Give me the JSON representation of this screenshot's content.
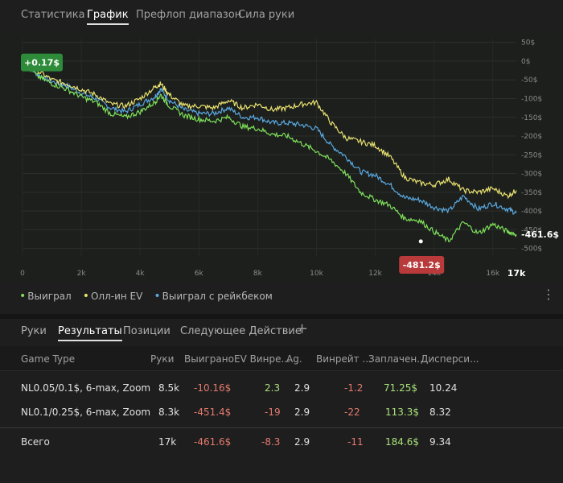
{
  "top_tabs": [
    "Статистика",
    "График",
    "Префлоп диапазон",
    "Сила руки"
  ],
  "active_top_tab": 1,
  "chart_data": {
    "type": "line",
    "x_ticks": [
      "0",
      "2k",
      "4k",
      "6k",
      "8k",
      "10k",
      "12k",
      "14k",
      "16k"
    ],
    "x_end_label": "17k",
    "y_ticks": [
      "50$",
      "0$",
      "-50$",
      "-100$",
      "-150$",
      "-200$",
      "-250$",
      "-300$",
      "-350$",
      "-400$",
      "-450$",
      "-500$"
    ],
    "xlim": [
      0,
      16800
    ],
    "ylim": [
      -520,
      60
    ],
    "series": [
      {
        "name": "Выиграл",
        "color": "#7ee05a",
        "x": [
          0,
          500,
          1000,
          1500,
          2000,
          2500,
          3000,
          3500,
          4000,
          4500,
          4700,
          5000,
          5500,
          6000,
          6500,
          7000,
          7500,
          8000,
          8500,
          9000,
          9500,
          10000,
          10500,
          11000,
          11500,
          12000,
          12500,
          13000,
          13500,
          14000,
          14500,
          15000,
          15500,
          16000,
          16500,
          16800
        ],
        "y": [
          0,
          -40,
          -60,
          -75,
          -95,
          -110,
          -140,
          -150,
          -135,
          -110,
          -90,
          -120,
          -145,
          -155,
          -160,
          -150,
          -175,
          -180,
          -195,
          -200,
          -220,
          -240,
          -265,
          -300,
          -350,
          -370,
          -385,
          -420,
          -425,
          -455,
          -480,
          -430,
          -460,
          -435,
          -455,
          -462
        ]
      },
      {
        "name": "Олл-ин EV",
        "color": "#e8e070",
        "x": [
          0,
          500,
          1000,
          1500,
          2000,
          2500,
          3000,
          3500,
          4000,
          4500,
          4700,
          5000,
          5500,
          6000,
          6500,
          7000,
          7500,
          8000,
          8500,
          9000,
          9500,
          10000,
          10500,
          11000,
          11500,
          12000,
          12500,
          13000,
          13500,
          14000,
          14500,
          15000,
          15500,
          16000,
          16500,
          16800
        ],
        "y": [
          5,
          -25,
          -50,
          -60,
          -75,
          -90,
          -115,
          -120,
          -100,
          -70,
          -60,
          -90,
          -120,
          -120,
          -125,
          -105,
          -125,
          -115,
          -130,
          -125,
          -115,
          -110,
          -165,
          -205,
          -215,
          -225,
          -255,
          -310,
          -325,
          -330,
          -315,
          -345,
          -350,
          -340,
          -360,
          -345
        ]
      },
      {
        "name": "Выиграл с рейкбеком",
        "color": "#5aa8e0",
        "x": [
          0,
          500,
          1000,
          1500,
          2000,
          2500,
          3000,
          3500,
          4000,
          4500,
          4700,
          5000,
          5500,
          6000,
          6500,
          7000,
          7500,
          8000,
          8500,
          9000,
          9500,
          10000,
          10500,
          11000,
          11500,
          12000,
          12500,
          13000,
          13500,
          14000,
          14500,
          15000,
          15500,
          16000,
          16500,
          16800
        ],
        "y": [
          0,
          -35,
          -55,
          -65,
          -85,
          -100,
          -125,
          -135,
          -115,
          -95,
          -75,
          -105,
          -130,
          -140,
          -140,
          -125,
          -150,
          -150,
          -165,
          -165,
          -170,
          -180,
          -225,
          -255,
          -295,
          -305,
          -330,
          -365,
          -370,
          -390,
          -400,
          -360,
          -395,
          -380,
          -395,
          -405
        ]
      }
    ],
    "start_label": "+0.17$",
    "end_label": "-461.6$",
    "min_label": "-481.2$",
    "min_point": [
      13550,
      -481
    ]
  },
  "legend": [
    "Выиграл",
    "Олл-ин EV",
    "Выиграл с рейкбеком"
  ],
  "sub_tabs": [
    "Руки",
    "Результаты",
    "Позиции",
    "Следующее Действие"
  ],
  "active_sub_tab": 1,
  "add_tab": "+",
  "more_menu": "⋮",
  "table": {
    "headers": [
      "Game Type",
      "Руки",
      "Выиграно",
      "EV Винре...",
      "Ag.",
      "Винрейт ...",
      "Заплачен...",
      "Дисперси..."
    ],
    "rows": [
      [
        "NL0.05/0.1$, 6-max, Zoom",
        "8.5k",
        "-10.16$",
        "2.3",
        "2.9",
        "-1.2",
        "71.25$",
        "10.24"
      ],
      [
        "NL0.1/0.25$, 6-max, Zoom",
        "8.3k",
        "-451.4$",
        "-19",
        "2.9",
        "-22",
        "113.3$",
        "8.32"
      ]
    ],
    "total": [
      "Всего",
      "17k",
      "-461.6$",
      "-8.3",
      "2.9",
      "-11",
      "184.6$",
      "9.34"
    ]
  }
}
